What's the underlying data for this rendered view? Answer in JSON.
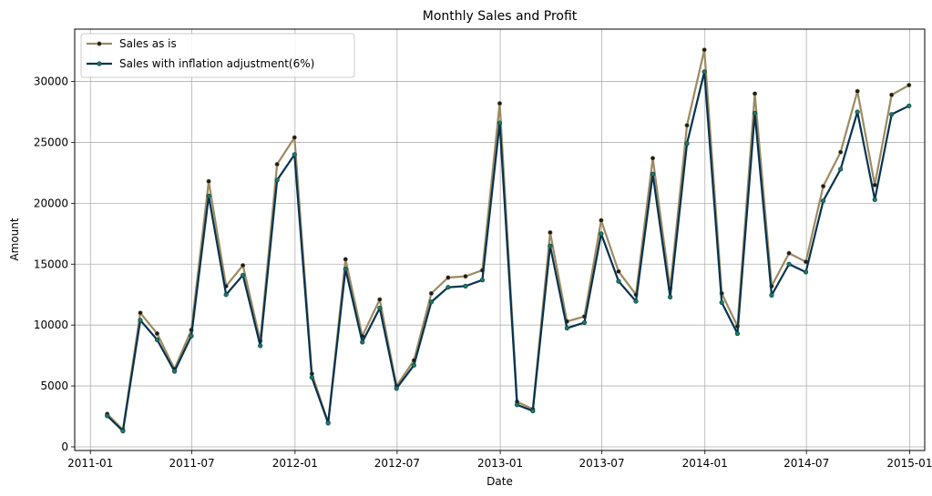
{
  "chart_data": {
    "type": "line",
    "title": "Monthly Sales and Profit",
    "xlabel": "Date",
    "ylabel": "Amount",
    "x_ticks": [
      "2011-01",
      "2011-07",
      "2012-01",
      "2012-07",
      "2013-01",
      "2013-07",
      "2014-01",
      "2014-07",
      "2015-01"
    ],
    "y_ticks": [
      0,
      5000,
      10000,
      15000,
      20000,
      25000,
      30000
    ],
    "xlim": [
      "2010-12-04",
      "2015-01-28"
    ],
    "ylim": [
      -300,
      34300
    ],
    "grid": true,
    "legend_position": "top-left",
    "x": [
      "2011-01-31",
      "2011-02-28",
      "2011-03-31",
      "2011-04-30",
      "2011-05-31",
      "2011-06-30",
      "2011-07-31",
      "2011-08-31",
      "2011-09-30",
      "2011-10-31",
      "2011-11-30",
      "2011-12-31",
      "2012-01-31",
      "2012-02-29",
      "2012-03-31",
      "2012-04-30",
      "2012-05-31",
      "2012-06-30",
      "2012-07-31",
      "2012-08-31",
      "2012-09-30",
      "2012-10-31",
      "2012-11-30",
      "2012-12-31",
      "2013-01-31",
      "2013-02-28",
      "2013-03-31",
      "2013-04-30",
      "2013-05-31",
      "2013-06-30",
      "2013-07-31",
      "2013-08-31",
      "2013-09-30",
      "2013-10-31",
      "2013-11-30",
      "2013-12-31",
      "2014-01-31",
      "2014-02-28",
      "2014-03-31",
      "2014-04-30",
      "2014-05-31",
      "2014-06-30",
      "2014-07-31",
      "2014-08-31",
      "2014-09-30",
      "2014-10-31",
      "2014-11-30",
      "2014-12-31"
    ],
    "series": [
      {
        "name": "Sales as is",
        "color": "#9c8a5f",
        "marker_color": "#1a1a1a",
        "values": [
          2700,
          1400,
          11000,
          9300,
          6400,
          9600,
          21800,
          13200,
          14900,
          8700,
          23200,
          25400,
          6000,
          2000,
          15400,
          9100,
          12100,
          5000,
          7100,
          12600,
          13900,
          14000,
          14500,
          28200,
          3700,
          3100,
          17600,
          10300,
          10700,
          18600,
          14400,
          12500,
          23700,
          13000,
          26400,
          32600,
          12600,
          9900,
          29000,
          13200,
          15900,
          15200,
          21400,
          24200,
          29200,
          21500,
          28900,
          29700
        ]
      },
      {
        "name": "Sales with inflation adjustment(6%)",
        "color": "#04324f",
        "marker_color": "#1d7a5c",
        "values": [
          2550,
          1300,
          10400,
          8800,
          6200,
          9100,
          20600,
          12500,
          14100,
          8300,
          21900,
          24000,
          5700,
          1950,
          14600,
          8600,
          11400,
          4800,
          6700,
          11900,
          13100,
          13200,
          13700,
          26600,
          3450,
          2950,
          16500,
          9750,
          10200,
          17500,
          13600,
          11950,
          22400,
          12300,
          24900,
          30800,
          11850,
          9300,
          27400,
          12450,
          15000,
          14350,
          20200,
          22800,
          27500,
          20300,
          27300,
          28000
        ]
      }
    ]
  }
}
